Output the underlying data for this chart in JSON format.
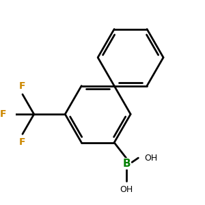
{
  "bg_color": "#ffffff",
  "bond_color": "#000000",
  "B_color": "#008000",
  "F_color": "#cc8800",
  "lw": 2.0,
  "dbo": 0.04,
  "s": 0.42,
  "figsize": [
    3.0,
    3.0
  ],
  "dpi": 100,
  "xlim": [
    -1.1,
    1.3
  ],
  "ylim": [
    -1.3,
    1.1
  ]
}
